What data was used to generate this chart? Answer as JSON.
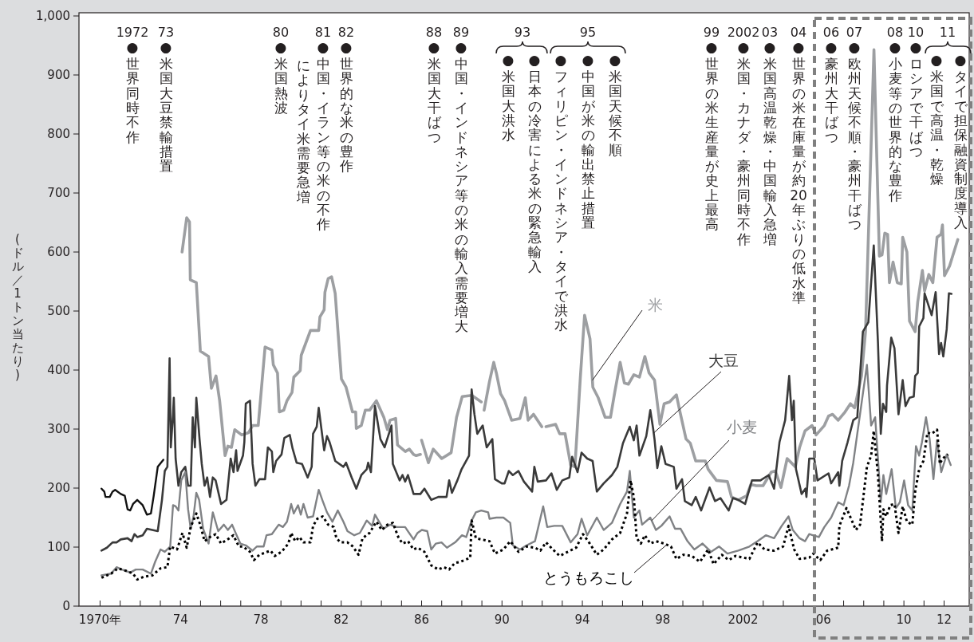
{
  "chart_data": {
    "type": "line",
    "ylabel": "(ドル／1トン当たり)",
    "xlim": [
      1968.95,
      2013.25
    ],
    "ylim": [
      0,
      1000
    ],
    "xticks": [
      {
        "value": 1970,
        "label": "1970年"
      },
      {
        "value": 1971,
        "label": null
      },
      {
        "value": 1972,
        "label": null
      },
      {
        "value": 1973,
        "label": null
      },
      {
        "value": 1974,
        "label": "74"
      },
      {
        "value": 1975,
        "label": null
      },
      {
        "value": 1976,
        "label": null
      },
      {
        "value": 1977,
        "label": null
      },
      {
        "value": 1978,
        "label": "78"
      },
      {
        "value": 1979,
        "label": null
      },
      {
        "value": 1980,
        "label": null
      },
      {
        "value": 1981,
        "label": null
      },
      {
        "value": 1982,
        "label": "82"
      },
      {
        "value": 1983,
        "label": null
      },
      {
        "value": 1984,
        "label": null
      },
      {
        "value": 1985,
        "label": null
      },
      {
        "value": 1986,
        "label": "86"
      },
      {
        "value": 1987,
        "label": null
      },
      {
        "value": 1988,
        "label": null
      },
      {
        "value": 1989,
        "label": null
      },
      {
        "value": 1990,
        "label": "90"
      },
      {
        "value": 1991,
        "label": null
      },
      {
        "value": 1992,
        "label": null
      },
      {
        "value": 1993,
        "label": null
      },
      {
        "value": 1994,
        "label": "94"
      },
      {
        "value": 1995,
        "label": null
      },
      {
        "value": 1996,
        "label": null
      },
      {
        "value": 1997,
        "label": null
      },
      {
        "value": 1998,
        "label": "98"
      },
      {
        "value": 1999,
        "label": null
      },
      {
        "value": 2000,
        "label": null
      },
      {
        "value": 2001,
        "label": null
      },
      {
        "value": 2002,
        "label": "2002"
      },
      {
        "value": 2003,
        "label": null
      },
      {
        "value": 2004,
        "label": null
      },
      {
        "value": 2005,
        "label": null
      },
      {
        "value": 2006,
        "label": "06"
      },
      {
        "value": 2007,
        "label": null
      },
      {
        "value": 2008,
        "label": null
      },
      {
        "value": 2009,
        "label": null
      },
      {
        "value": 2010,
        "label": "10"
      },
      {
        "value": 2011,
        "label": null
      },
      {
        "value": 2012,
        "label": "12"
      }
    ],
    "yticks": [
      0,
      100,
      200,
      300,
      400,
      500,
      600,
      700,
      800,
      900,
      {
        "value": 1000,
        "label": "1,000"
      }
    ],
    "legend": false,
    "annotations": [
      "1972",
      "●世界同時不作",
      "73",
      "●米国大豆禁輸措置",
      "80",
      "●米国熱波",
      "81",
      "●中国・イラン等の米の不作",
      "によりタイ米需要急増",
      "82",
      "●世界的な米の豊作",
      "88",
      "●米国大干ばつ",
      "89",
      "●中国・インドネシア等の米の輸入需要増大",
      "93",
      "●米国大洪水",
      "●日本の冷害による米の緊急輸入",
      "95",
      "●フィリピン・インドネシア・タイで洪水",
      "●中国が米の輸出禁止措置",
      "●米国天候不順",
      "99",
      "●世界の米生産量が史上最高",
      "2002",
      "●米国・カナダ・豪州同時不作",
      "03",
      "●米国高温乾燥・中国輸入急増",
      "04",
      "●世界の米在庫量が約20年ぶりの低水準",
      "06",
      "●豪州大干ばつ",
      "07",
      "●欧州天候不順・豪州干ばつ",
      "08",
      "●小麦等の世界的な豊作",
      "10",
      "●ロシアで干ばつ",
      "11",
      "●米国で高温・乾燥",
      "●タイで担保融資制度導入"
    ],
    "series": [
      {
        "name": "米",
        "color": "#9d9fa2",
        "x": [
          1974.08,
          1974.31,
          1974.45,
          1974.49,
          1974.79,
          1974.99,
          1975.4,
          1975.54,
          1975.77,
          1975.95,
          1976.22,
          1976.36,
          1976.54,
          1976.7,
          1977.05,
          1977.39,
          1977.59,
          1977.87,
          1978.21,
          1978.55,
          1978.62,
          1978.83,
          1978.92,
          1979.14,
          1979.3,
          1979.55,
          1979.64,
          1979.96,
          1980.01,
          1980.47,
          1980.88,
          1980.94,
          1981.15,
          1981.19,
          1981.35,
          1981.52,
          1981.7,
          1982.01,
          1982.24,
          1982.56,
          1982.72,
          1982.75,
          1983.0,
          1983.2,
          1983.41,
          1983.75,
          1984.12,
          1984.3,
          1984.43,
          1984.71,
          1984.8,
          1985.19,
          1985.39,
          1985.6,
          1985.73,
          1985.94,
          1985.97,
          1986.0,
          1986.34,
          1986.58,
          1987.0,
          1987.47,
          1987.74,
          1988.02,
          1988.5,
          1988.97,
          1989.04,
          1989.11,
          1989.38,
          1989.59,
          1989.72,
          1989.93,
          1990.13,
          1990.48,
          1990.89,
          1991.16,
          1991.3,
          1991.57,
          1991.98,
          1992.08,
          1992.19,
          1992.67,
          1992.87,
          1993.14,
          1993.42,
          1993.63,
          1993.9,
          1994.11,
          1994.38,
          1994.52,
          1994.79,
          1995.13,
          1995.4,
          1995.61,
          1995.88,
          1996.09,
          1996.29,
          1996.56,
          1996.84,
          1997.11,
          1997.32,
          1997.59,
          1997.86,
          1998.07,
          1998.34,
          1998.68,
          1998.82,
          1999.16,
          1999.37,
          1999.64,
          2000.12,
          2000.26,
          2000.67,
          2001.22,
          2001.42,
          2001.76,
          2002.18,
          2002.38,
          2002.65,
          2002.99,
          2003.4,
          2003.61,
          2003.88,
          2004.19,
          2004.6,
          2004.81,
          2005.08,
          2005.43,
          2005.63,
          2006.04,
          2006.25,
          2006.45,
          2006.73,
          2007.07,
          2007.34,
          2007.55,
          2007.89,
          2008.09,
          2008.51,
          2008.78,
          2008.91,
          2009.05,
          2009.19,
          2009.28,
          2009.46,
          2009.67,
          2009.87,
          2009.94,
          2010.15,
          2010.28,
          2010.56,
          2010.69,
          2010.92,
          2011.03,
          2011.24,
          2011.44,
          2011.65,
          2011.85,
          2011.92,
          2012.02,
          2012.27,
          2012.68
        ],
        "values": [
          600,
          658,
          651,
          553,
          548,
          432,
          423,
          369,
          390,
          348,
          255,
          271,
          269,
          299,
          290,
          294,
          306,
          306,
          439,
          434,
          409,
          395,
          329,
          332,
          348,
          362,
          388,
          399,
          425,
          467,
          467,
          490,
          502,
          532,
          555,
          558,
          530,
          385,
          371,
          329,
          329,
          301,
          306,
          332,
          332,
          348,
          320,
          299,
          315,
          318,
          273,
          262,
          266,
          257,
          255,
          257,
          null,
          281,
          243,
          266,
          250,
          260,
          320,
          355,
          357,
          346,
          null,
          332,
          381,
          413,
          395,
          360,
          348,
          315,
          318,
          353,
          315,
          325,
          304,
          null,
          304,
          308,
          292,
          292,
          239,
          236,
          388,
          493,
          453,
          371,
          353,
          320,
          320,
          362,
          413,
          378,
          376,
          392,
          388,
          423,
          395,
          383,
          308,
          343,
          346,
          358,
          335,
          283,
          276,
          246,
          246,
          232,
          213,
          211,
          185,
          180,
          187,
          206,
          204,
          204,
          227,
          229,
          201,
          250,
          236,
          269,
          297,
          306,
          290,
          306,
          322,
          325,
          315,
          329,
          343,
          336,
          390,
          465,
          943,
          593,
          595,
          632,
          630,
          548,
          583,
          548,
          546,
          625,
          600,
          483,
          465,
          516,
          569,
          534,
          562,
          548,
          625,
          630,
          646,
          560,
          576,
          621
        ]
      },
      {
        "name": "大豆",
        "color": "#3a3a3a",
        "x": [
          1970.07,
          1970.34,
          1970.62,
          1970.82,
          1971.03,
          1971.37,
          1971.57,
          1971.71,
          1971.85,
          1972.12,
          1972.33,
          1972.6,
          1972.87,
          1973.08,
          1973.22,
          1973.35,
          1973.46,
          1973.52,
          1973.63,
          1973.67,
          1973.76,
          1973.9,
          1974.04,
          1974.24,
          1974.38,
          1974.51,
          1974.61,
          1974.72,
          1974.79,
          1974.95,
          1975.06,
          1975.2,
          1975.33,
          1975.47,
          1975.61,
          1975.75,
          1976.02,
          1976.29,
          1976.5,
          1976.64,
          1976.77,
          1976.84,
          1977.11,
          1977.18,
          1977.25,
          1977.46,
          1977.59,
          1977.73,
          1977.93,
          1978.21,
          1978.35,
          1978.55,
          1978.62,
          1978.76,
          1979.03,
          1979.17,
          1979.44,
          1979.58,
          1979.78,
          1980.05,
          1980.33,
          1980.53,
          1980.6,
          1980.78,
          1980.88,
          1981.15,
          1981.29,
          1981.42,
          1981.7,
          1982.11,
          1982.24,
          1982.52,
          1982.75,
          1983.0,
          1983.27,
          1983.34,
          1983.48,
          1983.68,
          1983.95,
          1984.16,
          1984.5,
          1984.57,
          1984.91,
          1985.05,
          1985.18,
          1985.32,
          1985.6,
          1985.94,
          1986.14,
          1986.48,
          1986.83,
          1987.24,
          1987.37,
          1987.51,
          1987.78,
          1987.99,
          1988.36,
          1988.49,
          1988.63,
          1988.77,
          1989.04,
          1989.24,
          1989.52,
          1989.65,
          1989.99,
          1990.13,
          1990.34,
          1990.54,
          1990.82,
          1991.09,
          1991.5,
          1991.61,
          1991.78,
          1992.19,
          1992.46,
          1992.73,
          1993.0,
          1993.35,
          1993.49,
          1993.76,
          1993.96,
          1994.24,
          1994.51,
          1994.72,
          1995.06,
          1995.47,
          1995.74,
          1996.02,
          1996.36,
          1996.56,
          1996.7,
          1996.84,
          1997.18,
          1997.38,
          1997.52,
          1997.59,
          1997.73,
          1997.93,
          1998.14,
          1998.55,
          1998.68,
          1998.96,
          1999.1,
          1999.44,
          1999.64,
          1999.91,
          2000.33,
          2000.6,
          2000.87,
          2001.28,
          2001.49,
          2001.76,
          2002.1,
          2002.44,
          2002.86,
          2003.27,
          2003.54,
          2003.81,
          2004.09,
          2004.29,
          2004.43,
          2004.52,
          2004.63,
          2004.91,
          2005.1,
          2005.15,
          2005.29,
          2005.54,
          2005.7,
          2006.25,
          2006.38,
          2006.73,
          2006.79,
          2006.93,
          2007.2,
          2007.48,
          2007.68,
          2007.96,
          2008.23,
          2008.5,
          2008.71,
          2008.85,
          2008.96,
          2009.12,
          2009.16,
          2009.37,
          2009.53,
          2009.73,
          2009.94,
          2010.08,
          2010.28,
          2010.49,
          2010.56,
          2010.69,
          2010.76,
          2010.97,
          2011.03,
          2011.38,
          2011.58,
          2011.75,
          2011.85,
          2011.96,
          2012.13,
          2012.24,
          2012.37
        ],
        "values": [
          94,
          99,
          108,
          108,
          113,
          115,
          110,
          122,
          117,
          120,
          131,
          129,
          127,
          180,
          229,
          236,
          420,
          269,
          325,
          353,
          250,
          204,
          227,
          236,
          204,
          204,
          320,
          269,
          353,
          283,
          241,
          204,
          218,
          185,
          218,
          213,
          173,
          180,
          250,
          227,
          264,
          229,
          255,
          278,
          343,
          348,
          241,
          204,
          215,
          215,
          269,
          262,
          227,
          246,
          257,
          285,
          290,
          267,
          243,
          241,
          218,
          236,
          292,
          304,
          336,
          264,
          288,
          278,
          246,
          236,
          243,
          218,
          199,
          222,
          232,
          243,
          227,
          339,
          283,
          269,
          306,
          241,
          213,
          222,
          211,
          222,
          190,
          190,
          199,
          180,
          185,
          185,
          213,
          192,
          213,
          232,
          255,
          367,
          325,
          292,
          306,
          269,
          283,
          215,
          208,
          208,
          229,
          222,
          229,
          211,
          194,
          236,
          211,
          213,
          225,
          197,
          213,
          218,
          253,
          227,
          260,
          250,
          246,
          194,
          208,
          222,
          236,
          276,
          304,
          281,
          306,
          255,
          288,
          332,
          301,
          283,
          234,
          271,
          241,
          236,
          199,
          215,
          178,
          171,
          185,
          162,
          201,
          178,
          183,
          162,
          183,
          180,
          173,
          213,
          213,
          222,
          199,
          278,
          315,
          390,
          315,
          348,
          232,
          190,
          199,
          185,
          250,
          250,
          213,
          225,
          208,
          227,
          204,
          246,
          278,
          315,
          320,
          465,
          481,
          611,
          446,
          292,
          343,
          329,
          374,
          455,
          437,
          325,
          383,
          339,
          353,
          355,
          390,
          395,
          474,
          488,
          530,
          493,
          532,
          427,
          446,
          423,
          469,
          530,
          529
        ]
      },
      {
        "name": "小麦",
        "color": "#808285",
        "x": [
          1970.07,
          1970.55,
          1970.82,
          1971.09,
          1971.5,
          1971.78,
          1972.12,
          1972.53,
          1972.74,
          1973.01,
          1973.22,
          1973.49,
          1973.63,
          1973.76,
          1973.9,
          1974.04,
          1974.24,
          1974.38,
          1974.51,
          1974.65,
          1974.79,
          1974.93,
          1975.13,
          1975.4,
          1975.61,
          1975.88,
          1976.16,
          1976.36,
          1976.57,
          1976.77,
          1976.98,
          1977.25,
          1977.59,
          1977.8,
          1978.14,
          1978.28,
          1978.55,
          1978.89,
          1979.1,
          1979.3,
          1979.51,
          1979.64,
          1979.85,
          1979.99,
          1980.12,
          1980.33,
          1980.6,
          1980.88,
          1981.08,
          1981.29,
          1981.56,
          1981.83,
          1982.11,
          1982.31,
          1982.65,
          1982.93,
          1983.27,
          1983.54,
          1983.68,
          1984.09,
          1984.43,
          1984.77,
          1985.18,
          1985.6,
          1985.8,
          1986.01,
          1986.28,
          1986.48,
          1986.71,
          1986.99,
          1987.26,
          1987.67,
          1988.01,
          1988.22,
          1988.49,
          1988.7,
          1988.97,
          1989.31,
          1989.38,
          1989.72,
          1990.07,
          1990.41,
          1990.54,
          1990.89,
          1991.23,
          1991.64,
          1992.05,
          1992.25,
          1992.6,
          1993.0,
          1993.42,
          1993.76,
          1993.96,
          1994.24,
          1994.72,
          1995.06,
          1995.47,
          1995.88,
          1996.22,
          1996.36,
          1996.56,
          1996.84,
          1996.97,
          1997.38,
          1997.66,
          1997.93,
          1998.34,
          1998.61,
          1998.89,
          1999.23,
          1999.57,
          1999.98,
          2000.4,
          2000.8,
          2001.22,
          2001.76,
          2002.31,
          2002.72,
          2003.13,
          2003.54,
          2003.92,
          2004.26,
          2004.47,
          2004.81,
          2005.08,
          2005.29,
          2005.77,
          2006.04,
          2006.38,
          2006.73,
          2007.0,
          2007.27,
          2007.48,
          2007.68,
          2007.89,
          2008.16,
          2008.37,
          2008.57,
          2008.71,
          2008.85,
          2008.98,
          2009.12,
          2009.39,
          2009.6,
          2009.8,
          2010.01,
          2010.21,
          2010.42,
          2010.6,
          2010.76,
          2010.9,
          2011.1,
          2011.28,
          2011.47,
          2011.65,
          2011.86,
          2012.13,
          2012.33
        ],
        "values": [
          52,
          55,
          66,
          62,
          57,
          62,
          62,
          55,
          75,
          96,
          92,
          101,
          171,
          169,
          162,
          213,
          227,
          164,
          131,
          152,
          192,
          180,
          131,
          106,
          159,
          127,
          138,
          129,
          138,
          122,
          106,
          103,
          94,
          101,
          101,
          120,
          122,
          138,
          134,
          143,
          173,
          157,
          171,
          155,
          173,
          150,
          152,
          197,
          178,
          159,
          143,
          162,
          143,
          127,
          120,
          124,
          145,
          136,
          155,
          131,
          138,
          134,
          134,
          113,
          124,
          129,
          127,
          96,
          106,
          108,
          99,
          108,
          120,
          117,
          145,
          159,
          162,
          159,
          148,
          150,
          150,
          141,
          103,
          96,
          103,
          110,
          169,
          134,
          136,
          136,
          108,
          122,
          148,
          120,
          150,
          129,
          141,
          173,
          194,
          229,
          150,
          162,
          138,
          150,
          129,
          136,
          152,
          131,
          131,
          110,
          96,
          106,
          92,
          101,
          89,
          94,
          101,
          110,
          120,
          115,
          136,
          152,
          129,
          115,
          110,
          122,
          117,
          134,
          150,
          176,
          171,
          204,
          243,
          292,
          343,
          409,
          306,
          320,
          250,
          176,
          222,
          190,
          232,
          166,
          176,
          213,
          171,
          162,
          271,
          255,
          278,
          320,
          283,
          215,
          281,
          227,
          257,
          239
        ]
      },
      {
        "name": "とうもろこし",
        "color": "#000000",
        "line_style": "dotted",
        "x": [
          1970.07,
          1970.55,
          1970.89,
          1971.37,
          1971.64,
          1971.85,
          1972.19,
          1972.6,
          1973.01,
          1973.35,
          1973.49,
          1973.83,
          1974.1,
          1974.31,
          1974.51,
          1974.79,
          1975.0,
          1975.2,
          1975.47,
          1975.75,
          1976.02,
          1976.43,
          1976.63,
          1976.91,
          1977.11,
          1977.46,
          1977.66,
          1977.93,
          1978.48,
          1978.69,
          1979.03,
          1979.37,
          1979.51,
          1979.71,
          1979.92,
          1980.12,
          1980.47,
          1980.6,
          1980.81,
          1981.08,
          1981.35,
          1981.63,
          1981.76,
          1981.97,
          1982.31,
          1982.58,
          1982.86,
          1983.06,
          1983.41,
          1983.75,
          1984.02,
          1984.3,
          1984.57,
          1984.84,
          1985.05,
          1985.32,
          1985.6,
          1985.8,
          1986.14,
          1986.48,
          1986.83,
          1987.1,
          1987.37,
          1987.65,
          1987.92,
          1988.42,
          1988.49,
          1988.7,
          1988.97,
          1989.38,
          1989.65,
          1990.07,
          1990.41,
          1990.82,
          1991.23,
          1991.64,
          1991.91,
          1992.19,
          1992.53,
          1992.87,
          1993.28,
          1993.69,
          1994.03,
          1994.37,
          1994.72,
          1995.06,
          1995.47,
          1995.88,
          1996.22,
          1996.4,
          1996.56,
          1996.7,
          1996.91,
          1997.11,
          1997.38,
          1997.66,
          1998.07,
          1998.41,
          1998.68,
          1999.03,
          1999.44,
          1999.85,
          2000.26,
          2000.53,
          2000.94,
          2001.28,
          2001.62,
          2002.31,
          2002.72,
          2003.06,
          2003.54,
          2003.99,
          2004.26,
          2004.54,
          2004.81,
          2005.29,
          2005.49,
          2005.84,
          2006.18,
          2006.73,
          2006.79,
          2007.14,
          2007.41,
          2007.61,
          2007.82,
          2008.16,
          2008.37,
          2008.5,
          2008.71,
          2008.91,
          2008.98,
          2009.12,
          2009.32,
          2009.53,
          2009.73,
          2009.94,
          2010.15,
          2010.42,
          2010.56,
          2010.76,
          2010.97,
          2011.17,
          2011.38,
          2011.65,
          2011.79,
          2011.92,
          2012.2
        ],
        "values": [
          48,
          55,
          64,
          59,
          55,
          45,
          50,
          52,
          64,
          66,
          101,
          96,
          124,
          99,
          134,
          157,
          136,
          110,
          117,
          122,
          106,
          115,
          120,
          101,
          101,
          92,
          78,
          87,
          94,
          85,
          92,
          106,
          124,
          110,
          117,
          108,
          108,
          136,
          148,
          152,
          138,
          134,
          115,
          108,
          108,
          101,
          87,
          115,
          124,
          143,
          129,
          138,
          141,
          117,
          106,
          110,
          96,
          99,
          92,
          69,
          62,
          66,
          62,
          73,
          75,
          82,
          145,
          115,
          113,
          110,
          89,
          96,
          110,
          92,
          101,
          99,
          94,
          108,
          96,
          85,
          92,
          99,
          122,
          106,
          87,
          96,
          113,
          124,
          157,
          213,
          185,
          115,
          106,
          120,
          106,
          110,
          106,
          101,
          80,
          87,
          85,
          75,
          96,
          71,
          87,
          78,
          85,
          80,
          108,
          96,
          94,
          101,
          136,
          96,
          80,
          82,
          89,
          78,
          94,
          99,
          136,
          166,
          145,
          129,
          138,
          236,
          255,
          297,
          222,
          110,
          164,
          152,
          171,
          173,
          124,
          169,
          143,
          138,
          194,
          232,
          246,
          294,
          292,
          299,
          241,
          250,
          257
        ]
      },
      {
        "color": "#111111",
        "x": [
          1970.07,
          1970.21,
          1970.27,
          1970.48,
          1970.62,
          1970.75,
          1971.03,
          1971.23,
          1971.37,
          1971.5,
          1971.64,
          1971.85,
          1972.12,
          1972.33,
          1972.53,
          1972.67,
          1972.87,
          1973.15
        ],
        "values": [
          199,
          194,
          185,
          185,
          194,
          197,
          190,
          187,
          164,
          162,
          173,
          180,
          171,
          155,
          157,
          187,
          236,
          248
        ]
      }
    ]
  }
}
